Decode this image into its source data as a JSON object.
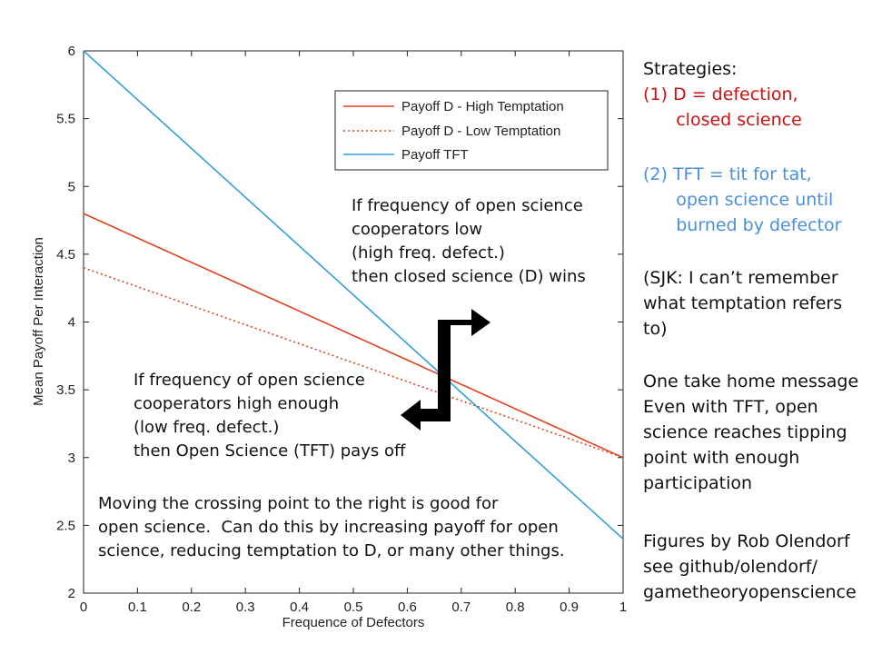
{
  "chart_data": {
    "type": "line",
    "xlabel": "Frequence of Defectors",
    "ylabel": "Mean Payoff Per Interaction",
    "xlim": [
      0,
      1
    ],
    "ylim": [
      2,
      6
    ],
    "xticks": [
      "0",
      "0.1",
      "0.2",
      "0.3",
      "0.4",
      "0.5",
      "0.6",
      "0.7",
      "0.8",
      "0.9",
      "1"
    ],
    "yticks": [
      "2",
      "2.5",
      "3",
      "3.5",
      "4",
      "4.5",
      "5",
      "5.5",
      "6"
    ],
    "legend_position": "top-right",
    "series": [
      {
        "name": "Payoff D - High Temptation",
        "x": [
          0,
          1
        ],
        "y": [
          4.8,
          3.0
        ],
        "color": "#e0411f",
        "style": "solid"
      },
      {
        "name": "Payoff D - Low Temptation",
        "x": [
          0,
          1
        ],
        "y": [
          4.4,
          3.0
        ],
        "color": "#e0411f",
        "style": "dotted"
      },
      {
        "name": "Payoff TFT",
        "x": [
          0,
          1
        ],
        "y": [
          6.0,
          2.4
        ],
        "color": "#2f9fdb",
        "style": "solid"
      }
    ],
    "annotations": {
      "upper": "If frequency of open science\ncooperators low\n(high freq. defect.)\nthen closed science (D) wins",
      "lower": "If frequency of open science\ncooperators high enough\n(low freq. defect.)\nthen Open Science (TFT) pays off",
      "bottom": "Moving the crossing point to the right is good for\nopen science.  Can do this by increasing payoff for open\nscience, reducing temptation to D, or many other things."
    }
  },
  "sidebar": {
    "heading": "Strategies:",
    "strategy_d": "(1) D = defection,\n      closed science",
    "strategy_tft": "(2) TFT = tit for tat,\n      open science until\n      burned by defector",
    "note": "(SJK: I can’t remember\nwhat temptation refers\nto)",
    "message": "One take home message\nEven with TFT, open\nscience reaches tipping\npoint with enough\nparticipation",
    "credits": "Figures by Rob Olendorf\nsee github/olendorf/\ngametheoryopenscience",
    "colors": {
      "d": "#cc1111",
      "tft": "#4a90d9",
      "text": "#111111"
    }
  }
}
